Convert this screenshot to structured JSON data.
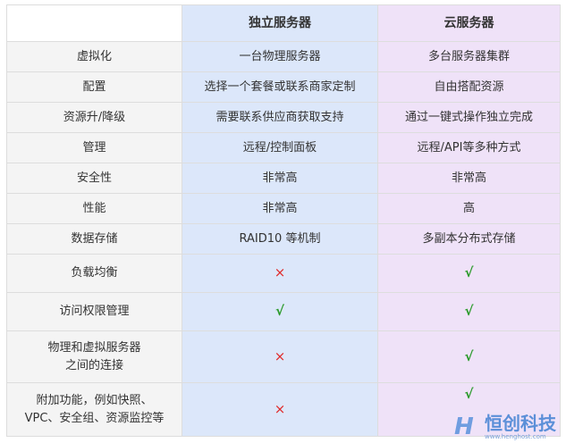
{
  "headers": [
    "",
    "独立服务器",
    "云服务器"
  ],
  "rows": [
    {
      "label": "虚拟化",
      "dedicated": "一台物理服务器",
      "cloud": "多台服务器集群"
    },
    {
      "label": "配置",
      "dedicated": "选择一个套餐或联系商家定制",
      "cloud": "自由搭配资源"
    },
    {
      "label": "资源升/降级",
      "dedicated": "需要联系供应商获取支持",
      "cloud": "通过一键式操作独立完成"
    },
    {
      "label": "管理",
      "dedicated": "远程/控制面板",
      "cloud": "远程/API等多种方式"
    },
    {
      "label": "安全性",
      "dedicated": "非常高",
      "cloud": "非常高"
    },
    {
      "label": "性能",
      "dedicated": "非常高",
      "cloud": "高"
    },
    {
      "label": "数据存储",
      "dedicated": "RAID10 等机制",
      "cloud": "多副本分布式存储"
    },
    {
      "label": "负载均衡",
      "dedicated": "×",
      "cloud": "√"
    },
    {
      "label": "访问权限管理",
      "dedicated": "√",
      "cloud": "√"
    },
    {
      "label": "物理和虚拟服务器\n之间的连接",
      "dedicated": "×",
      "cloud": "√"
    },
    {
      "label": "附加功能，例如快照、\nVPC、安全组、资源监控等",
      "dedicated": "×",
      "cloud": "√"
    }
  ],
  "watermark": {
    "name": "恒创科技",
    "url": "www.henghost.com"
  },
  "colors": {
    "check": "#2a9a2a",
    "cross": "#e02a2a",
    "dedicated_bg": "#dce7fa",
    "cloud_bg": "#efe2f8"
  }
}
